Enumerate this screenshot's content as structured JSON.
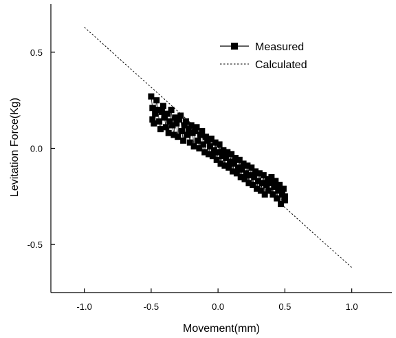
{
  "chart_data": {
    "type": "scatter",
    "title": "",
    "xlabel": "Movement(mm)",
    "ylabel": "Levitation Force(Kg)",
    "xlim": [
      -1.25,
      1.3
    ],
    "ylim": [
      -0.75,
      0.75
    ],
    "x_ticks": [
      -1.0,
      -0.5,
      0.0,
      0.5,
      1.0
    ],
    "x_tick_labels": [
      "-1.0",
      "-0.5",
      "0.0",
      "0.5",
      "1.0"
    ],
    "y_ticks": [
      -0.5,
      0.0,
      0.5
    ],
    "y_tick_labels": [
      "-0.5",
      "0.0",
      "0.5"
    ],
    "grid": false,
    "legend_position": "top-right",
    "series": [
      {
        "name": "Measured",
        "style": "line-with-square-markers",
        "color": "#000000",
        "points": [
          [
            -0.5,
            0.27
          ],
          [
            -0.49,
            0.21
          ],
          [
            -0.49,
            0.15
          ],
          [
            -0.48,
            0.13
          ],
          [
            -0.47,
            0.18
          ],
          [
            -0.46,
            0.25
          ],
          [
            -0.45,
            0.2
          ],
          [
            -0.44,
            0.14
          ],
          [
            -0.43,
            0.1
          ],
          [
            -0.42,
            0.19
          ],
          [
            -0.41,
            0.22
          ],
          [
            -0.4,
            0.16
          ],
          [
            -0.39,
            0.11
          ],
          [
            -0.38,
            0.18
          ],
          [
            -0.37,
            0.08
          ],
          [
            -0.36,
            0.14
          ],
          [
            -0.35,
            0.2
          ],
          [
            -0.34,
            0.12
          ],
          [
            -0.33,
            0.07
          ],
          [
            -0.32,
            0.16
          ],
          [
            -0.31,
            0.13
          ],
          [
            -0.3,
            0.06
          ],
          [
            -0.29,
            0.15
          ],
          [
            -0.28,
            0.17
          ],
          [
            -0.27,
            0.09
          ],
          [
            -0.26,
            0.04
          ],
          [
            -0.25,
            0.12
          ],
          [
            -0.24,
            0.14
          ],
          [
            -0.23,
            0.07
          ],
          [
            -0.22,
            0.1
          ],
          [
            -0.21,
            0.03
          ],
          [
            -0.2,
            0.12
          ],
          [
            -0.19,
            0.08
          ],
          [
            -0.18,
            0.01
          ],
          [
            -0.17,
            0.09
          ],
          [
            -0.16,
            0.11
          ],
          [
            -0.15,
            0.04
          ],
          [
            -0.14,
            0.0
          ],
          [
            -0.13,
            0.07
          ],
          [
            -0.12,
            0.09
          ],
          [
            -0.11,
            0.02
          ],
          [
            -0.1,
            -0.02
          ],
          [
            -0.09,
            0.06
          ],
          [
            -0.08,
            0.04
          ],
          [
            -0.07,
            -0.03
          ],
          [
            -0.06,
            0.01
          ],
          [
            -0.05,
            0.05
          ],
          [
            -0.04,
            -0.04
          ],
          [
            -0.03,
            -0.01
          ],
          [
            -0.02,
            0.03
          ],
          [
            -0.01,
            -0.06
          ],
          [
            0.0,
            -0.02
          ],
          [
            0.01,
            0.02
          ],
          [
            0.02,
            -0.08
          ],
          [
            0.03,
            -0.04
          ],
          [
            0.04,
            -0.01
          ],
          [
            0.05,
            -0.09
          ],
          [
            0.06,
            -0.05
          ],
          [
            0.07,
            -0.02
          ],
          [
            0.08,
            -0.1
          ],
          [
            0.09,
            -0.07
          ],
          [
            0.1,
            -0.03
          ],
          [
            0.11,
            -0.12
          ],
          [
            0.12,
            -0.08
          ],
          [
            0.13,
            -0.05
          ],
          [
            0.14,
            -0.13
          ],
          [
            0.15,
            -0.1
          ],
          [
            0.16,
            -0.06
          ],
          [
            0.17,
            -0.15
          ],
          [
            0.18,
            -0.11
          ],
          [
            0.19,
            -0.08
          ],
          [
            0.2,
            -0.16
          ],
          [
            0.21,
            -0.13
          ],
          [
            0.22,
            -0.09
          ],
          [
            0.23,
            -0.18
          ],
          [
            0.24,
            -0.14
          ],
          [
            0.25,
            -0.1
          ],
          [
            0.26,
            -0.19
          ],
          [
            0.27,
            -0.15
          ],
          [
            0.28,
            -0.12
          ],
          [
            0.29,
            -0.21
          ],
          [
            0.3,
            -0.17
          ],
          [
            0.31,
            -0.13
          ],
          [
            0.32,
            -0.22
          ],
          [
            0.33,
            -0.18
          ],
          [
            0.34,
            -0.14
          ],
          [
            0.35,
            -0.24
          ],
          [
            0.36,
            -0.19
          ],
          [
            0.37,
            -0.16
          ],
          [
            0.38,
            -0.22
          ],
          [
            0.39,
            -0.18
          ],
          [
            0.4,
            -0.15
          ],
          [
            0.41,
            -0.24
          ],
          [
            0.42,
            -0.2
          ],
          [
            0.43,
            -0.17
          ],
          [
            0.44,
            -0.26
          ],
          [
            0.45,
            -0.22
          ],
          [
            0.46,
            -0.19
          ],
          [
            0.47,
            -0.29
          ],
          [
            0.48,
            -0.24
          ],
          [
            0.49,
            -0.21
          ],
          [
            0.5,
            -0.27
          ],
          [
            0.5,
            -0.25
          ]
        ]
      },
      {
        "name": "Calculated",
        "style": "dotted-line",
        "color": "#000000",
        "points": [
          [
            -1.0,
            0.63
          ],
          [
            1.0,
            -0.62
          ]
        ]
      }
    ]
  }
}
